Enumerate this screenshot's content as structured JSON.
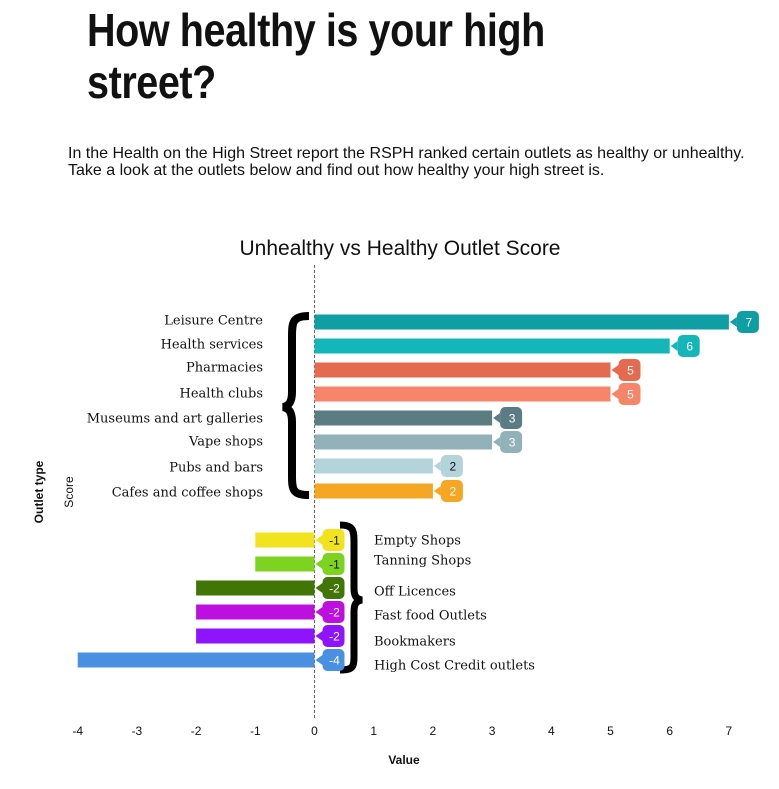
{
  "headline": "How healthy is your high street?",
  "intro": "In the Health on the High Street report the RSPH ranked certain outlets as healthy or unhealthy. Take a look at the outlets below and find out how healthy your high street is.",
  "chart_data": {
    "type": "bar",
    "orientation": "horizontal",
    "title": "Unhealthy vs Healthy Outlet Score",
    "xlabel": "Value",
    "ylabel": "Outlet type",
    "legend_label": "Score",
    "xlim": [
      -4,
      7
    ],
    "x_ticks": [
      "-4",
      "-3",
      "-2",
      "-1",
      "0",
      "1",
      "2",
      "3",
      "4",
      "5",
      "6",
      "7"
    ],
    "grid": false,
    "zero_line": "dashed",
    "categories": [
      "Leisure Centre",
      "Health services",
      "Pharmacies",
      "Health clubs",
      "Museums and art galleries",
      "Vape shops",
      "Pubs and bars",
      "Cafes and coffee shops",
      "Empty Shops",
      "Tanning Shops",
      "Off Licences",
      "Fast food Outlets",
      "Bookmakers",
      "High Cost Credit outlets"
    ],
    "values": [
      7,
      6,
      5,
      5,
      3,
      3,
      2,
      2,
      -1,
      -1,
      -2,
      -2,
      -2,
      -4
    ],
    "value_labels": [
      "7",
      "6",
      "5",
      "5",
      "3",
      "3",
      "2",
      "2",
      "-1",
      "-1",
      "-2",
      "-2",
      "-2",
      "-4"
    ],
    "colors": [
      "#0e9ea3",
      "#15b6ba",
      "#e56b50",
      "#f7856a",
      "#5b7c83",
      "#92b1b8",
      "#b4d4dc",
      "#f5a623",
      "#f1e31e",
      "#7ed321",
      "#417505",
      "#bd10e0",
      "#9013fe",
      "#4a90e2"
    ]
  }
}
